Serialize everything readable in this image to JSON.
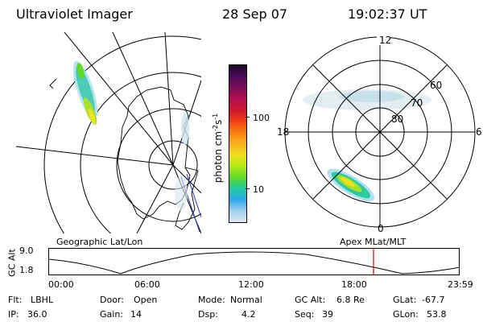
{
  "header": {
    "title": "Ultraviolet Imager",
    "date": "28 Sep 07",
    "time": "19:02:37 UT"
  },
  "colorbar": {
    "label_base": "photon cm",
    "label_exp1": "-2",
    "label_mid": "s",
    "label_exp2": "-1",
    "ticks": [
      "100",
      "10"
    ],
    "colors": [
      "#1a0a28",
      "#4a0a5a",
      "#7a1055",
      "#b01050",
      "#d01830",
      "#f04018",
      "#f88010",
      "#f8b020",
      "#f0e020",
      "#b8e818",
      "#60d828",
      "#20c8a0",
      "#30a8e8",
      "#a0d0f0",
      "#e0e8f0"
    ]
  },
  "left_panel": {
    "caption": "Geographic Lat/Lon"
  },
  "right_panel": {
    "caption": "Apex MLat/MLT",
    "mlt_labels": [
      "12",
      "18",
      "6",
      "0"
    ],
    "lat_labels": [
      "60",
      "70",
      "80"
    ]
  },
  "altitude_strip": {
    "ylabel": "GC Alt",
    "yticks": [
      "9.0",
      "1.8"
    ],
    "time_labels": [
      "00:00",
      "06:00",
      "12:00",
      "18:00",
      "23:59"
    ],
    "marker_color": "#e00000"
  },
  "status": {
    "flt_label": "Flt:",
    "flt_value": "LBHL",
    "door_label": "Door:",
    "door_value": "Open",
    "mode_label": "Mode:",
    "mode_value": "Normal",
    "gcalt_label": "GC Alt:",
    "gcalt_value": "6.8 Re",
    "glat_label": "GLat:",
    "glat_value": "-67.7",
    "ip_label": "IP:",
    "ip_value": "36.0",
    "gain_label": "Gain:",
    "gain_value": "14",
    "dsp_label": "Dsp:",
    "dsp_value": "4.2",
    "seq_label": "Seq:",
    "seq_value": "39",
    "glon_label": "GLon:",
    "glon_value": "53.8"
  }
}
